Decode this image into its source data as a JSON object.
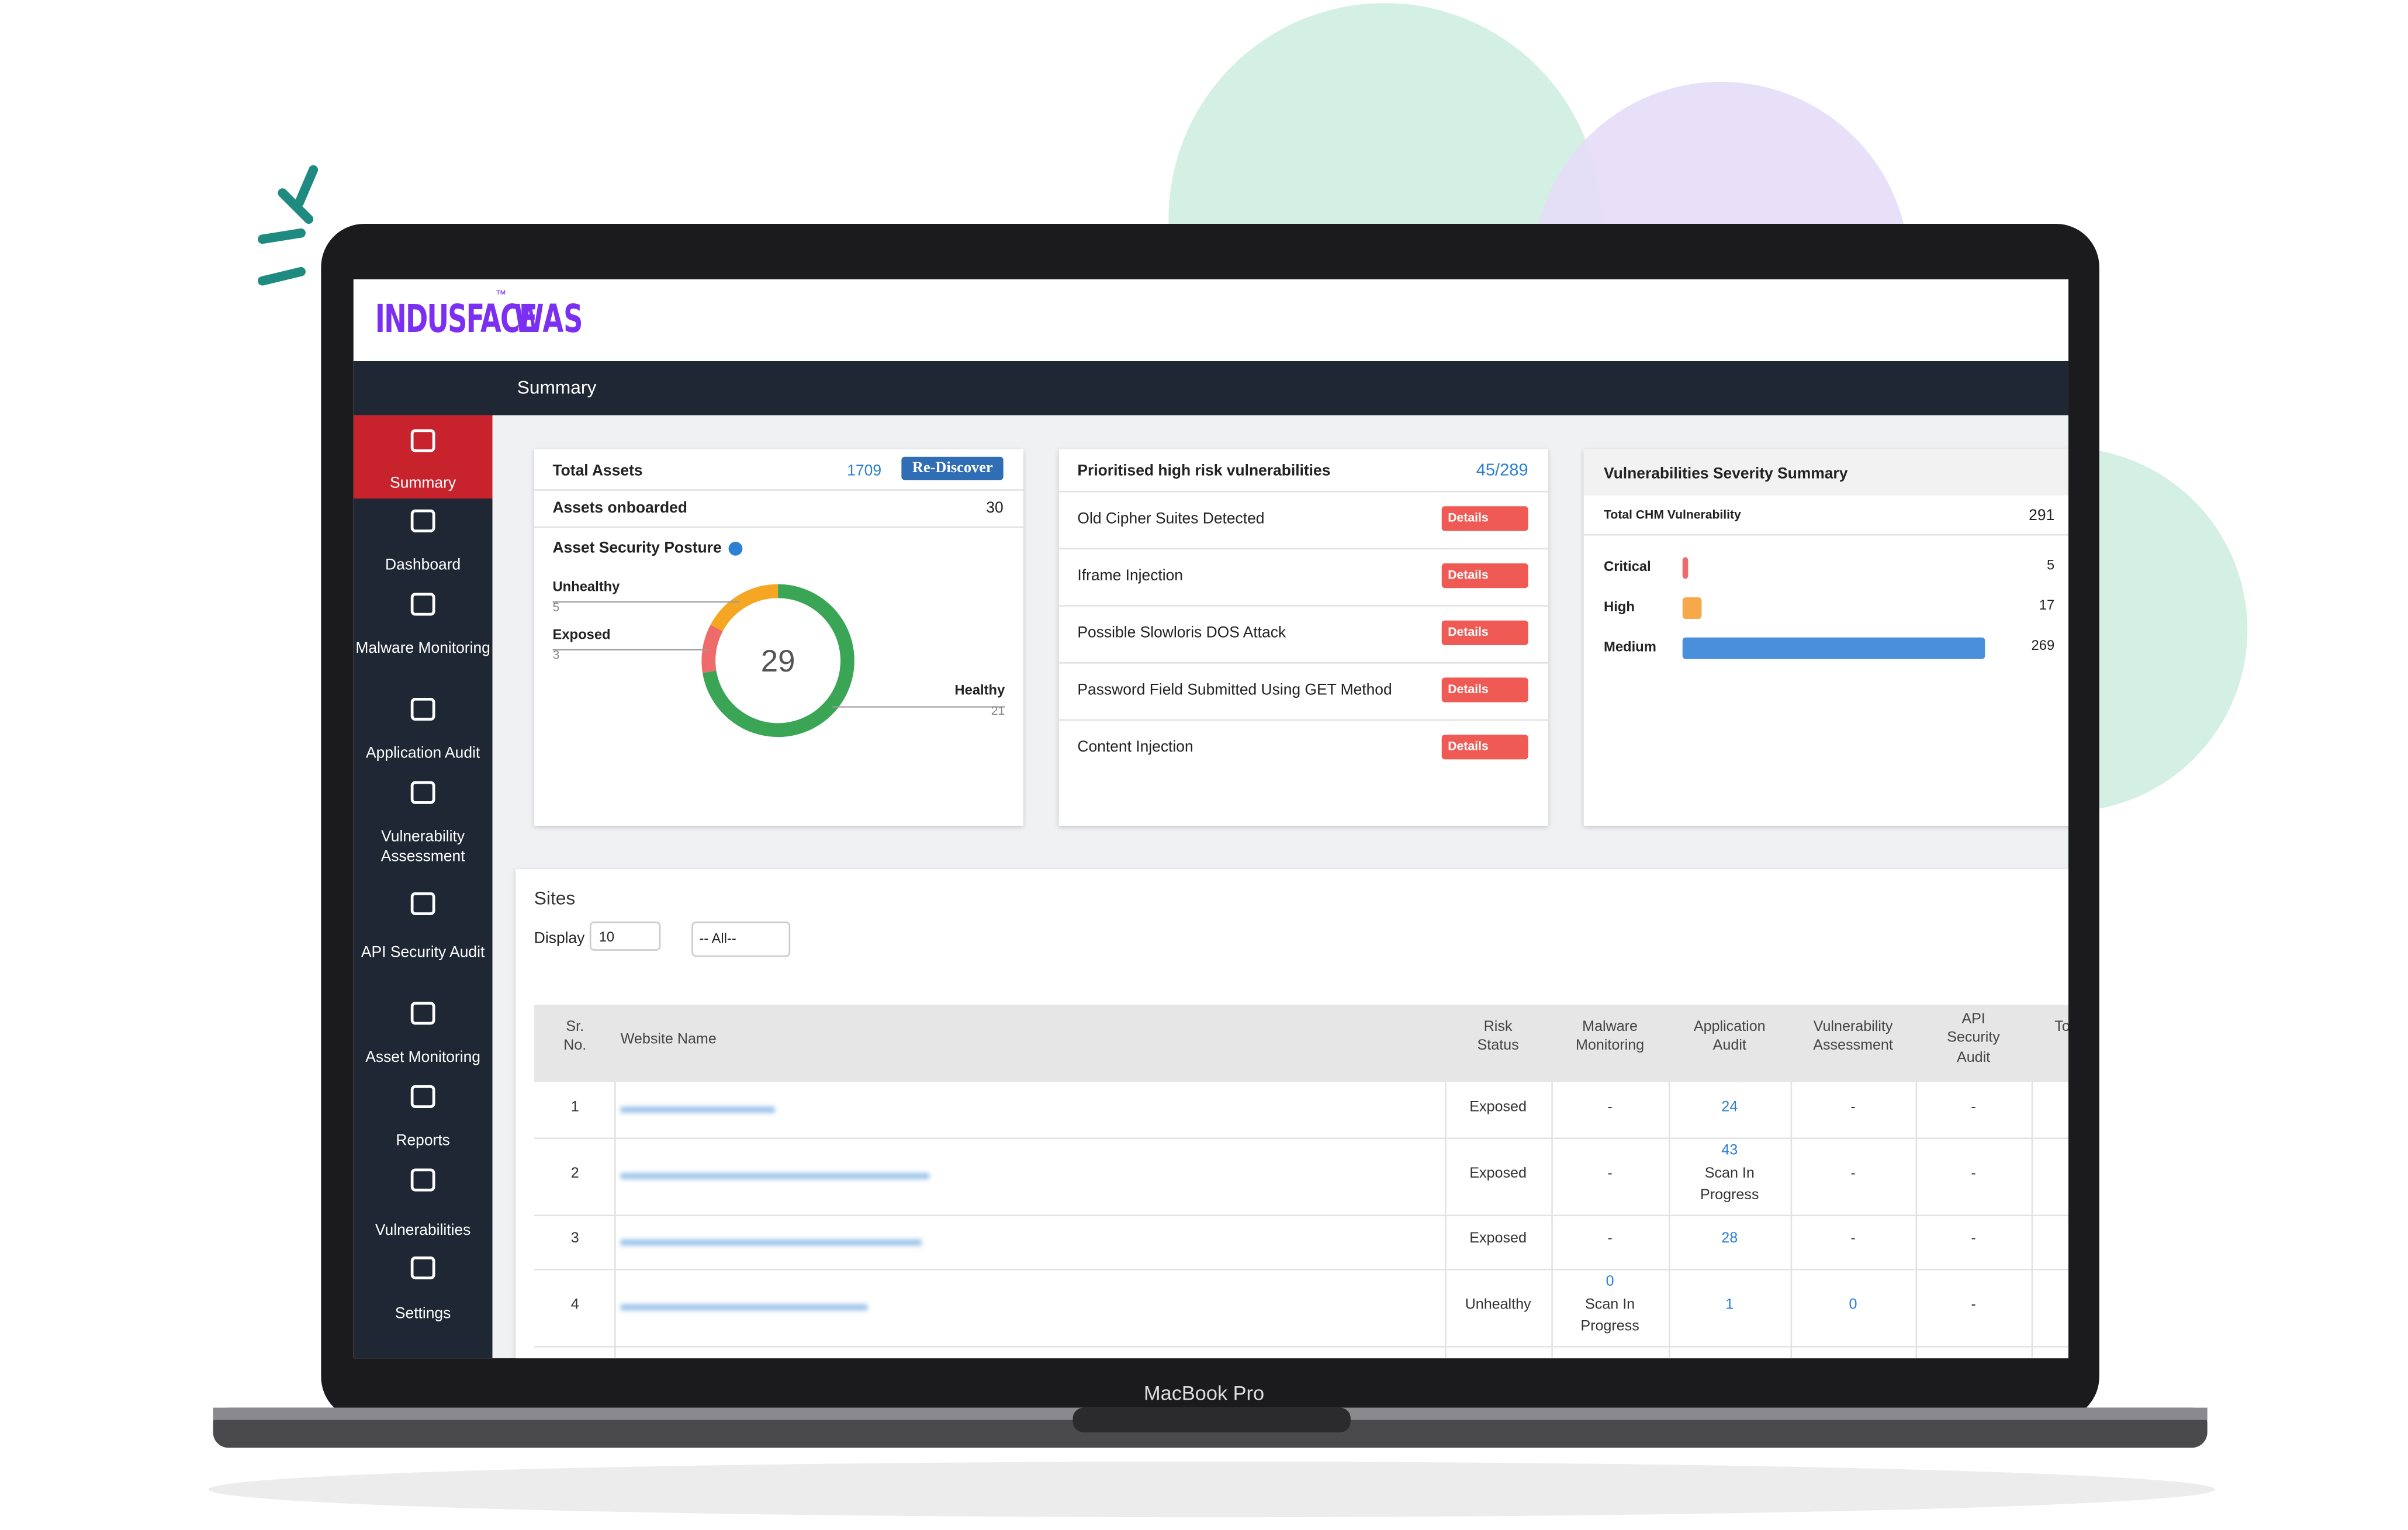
{
  "brand": {
    "logo": "INDUSFACE",
    "tm": "™",
    "product": "WAS"
  },
  "laptop_label": "MacBook Pro",
  "page_title": "Summary",
  "nav": [
    "Summary",
    "Dashboard",
    "Malware Monitoring",
    "Application Audit",
    "Vulnerability Assessment",
    "API Security Audit",
    "Asset Monitoring",
    "Reports",
    "Vulnerabilities",
    "Settings"
  ],
  "assets": {
    "total_label": "Total Assets",
    "total": 1709,
    "rediscover": "Re-Discover",
    "onboarded_label": "Assets onboarded",
    "onboarded": 30,
    "posture_title": "Asset Security Posture",
    "center": 29,
    "segments": [
      {
        "name": "Unhealthy",
        "value": 5,
        "color": "#f5a623"
      },
      {
        "name": "Exposed",
        "value": 3,
        "color": "#ef6b6b"
      },
      {
        "name": "Healthy",
        "value": 21,
        "color": "#3aa655"
      }
    ]
  },
  "vulns": {
    "title": "Prioritised high risk vulnerabilities",
    "count": "45/289",
    "button": "Details",
    "items": [
      "Old Cipher Suites Detected",
      "Iframe Injection",
      "Possible Slowloris DOS Attack",
      "Password Field Submitted Using GET Method",
      "Content Injection"
    ]
  },
  "severity": {
    "title": "Vulnerabilities Severity Summary",
    "total_label": "Total CHM Vulnerability",
    "total": 291,
    "levels": [
      {
        "name": "Critical",
        "value": 5,
        "color": "#ef6b6b"
      },
      {
        "name": "High",
        "value": 17,
        "color": "#f5a94a"
      },
      {
        "name": "Medium",
        "value": 269,
        "color": "#4a8fdc"
      }
    ]
  },
  "sites": {
    "title": "Sites",
    "display_label": "Display",
    "page_size": "10",
    "filter": "-- All--",
    "columns": [
      "Sr.\nNo.",
      "Website Name",
      "Risk\nStatus",
      "Malware\nMonitoring",
      "Application\nAudit",
      "Vulnerability\nAssessment",
      "API\nSecurity\nAudit",
      "Tota"
    ],
    "rows": [
      [
        [
          "1"
        ],
        [
          "Exposed"
        ],
        [
          "-"
        ],
        [
          "24"
        ],
        [
          "-"
        ],
        [
          "-"
        ]
      ],
      [
        [
          "2"
        ],
        [
          "Exposed"
        ],
        [
          "-"
        ],
        [
          "43",
          "Scan In",
          "Progress"
        ],
        [
          "-"
        ],
        [
          "-"
        ]
      ],
      [
        [
          "3"
        ],
        [
          "Exposed"
        ],
        [
          "-"
        ],
        [
          "28"
        ],
        [
          "-"
        ],
        [
          "-"
        ]
      ],
      [
        [
          "4"
        ],
        [
          "Unhealthy"
        ],
        [
          "0",
          "Scan In",
          "Progress"
        ],
        [
          "1"
        ],
        [
          "0"
        ],
        [
          "-"
        ]
      ]
    ]
  }
}
